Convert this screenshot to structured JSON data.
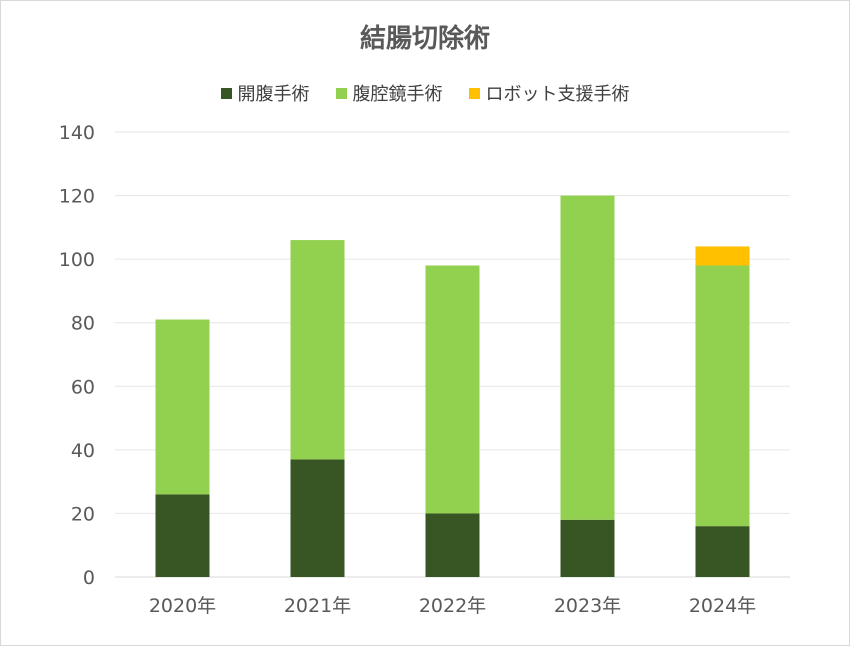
{
  "chart_data": {
    "type": "bar",
    "stacked": true,
    "title": "結腸切除術",
    "xlabel": "",
    "ylabel": "",
    "categories": [
      "2020年",
      "2021年",
      "2022年",
      "2023年",
      "2024年"
    ],
    "series": [
      {
        "name": "開腹手術",
        "values": [
          26,
          37,
          20,
          18,
          16
        ],
        "color": "#375623"
      },
      {
        "name": "腹腔鏡手術",
        "values": [
          55,
          69,
          78,
          102,
          82
        ],
        "color": "#92d050"
      },
      {
        "name": "ロボット支援手術",
        "values": [
          0,
          0,
          0,
          0,
          6
        ],
        "color": "#ffc000"
      }
    ],
    "ylim": [
      0,
      140
    ],
    "yticks": [
      0,
      20,
      40,
      60,
      80,
      100,
      120,
      140
    ],
    "grid": true,
    "legend_position": "top"
  }
}
